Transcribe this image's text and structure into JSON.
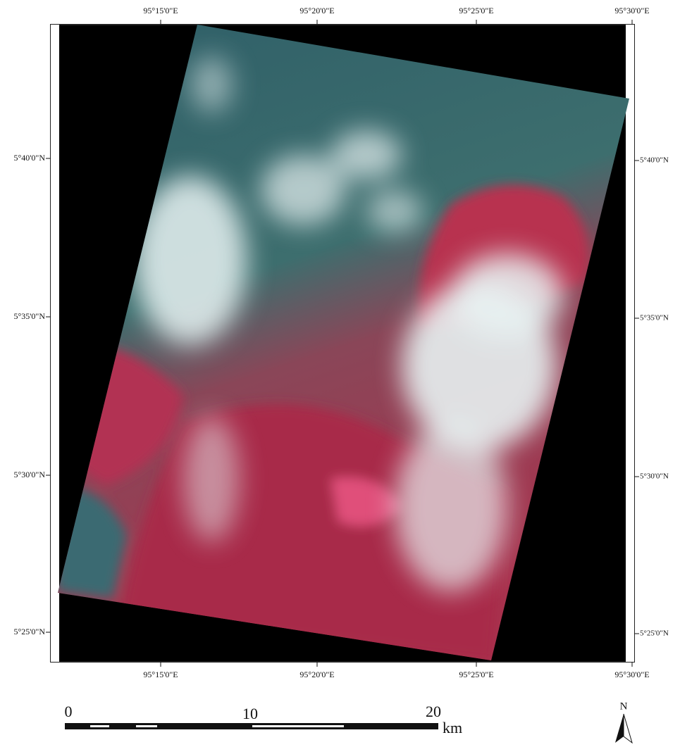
{
  "map": {
    "top_labels": [
      "95°15'0\"E",
      "95°20'0\"E",
      "95°25'0\"E",
      "95°30'0\"E"
    ],
    "bottom_labels": [
      "95°15'0\"E",
      "95°20'0\"E",
      "95°25'0\"E",
      "95°30'0\"E"
    ],
    "left_labels": [
      "5°40'0\"N",
      "5°35'0\"N",
      "5°30'0\"N",
      "5°25'0\"N"
    ],
    "right_labels": [
      "5°40'0\"N",
      "5°35'0\"N",
      "5°30'0\"N",
      "5°25'0\"N"
    ],
    "scale_bar": {
      "labels": [
        "0",
        "10",
        "20"
      ],
      "unit": "km"
    },
    "north_label": "N"
  }
}
